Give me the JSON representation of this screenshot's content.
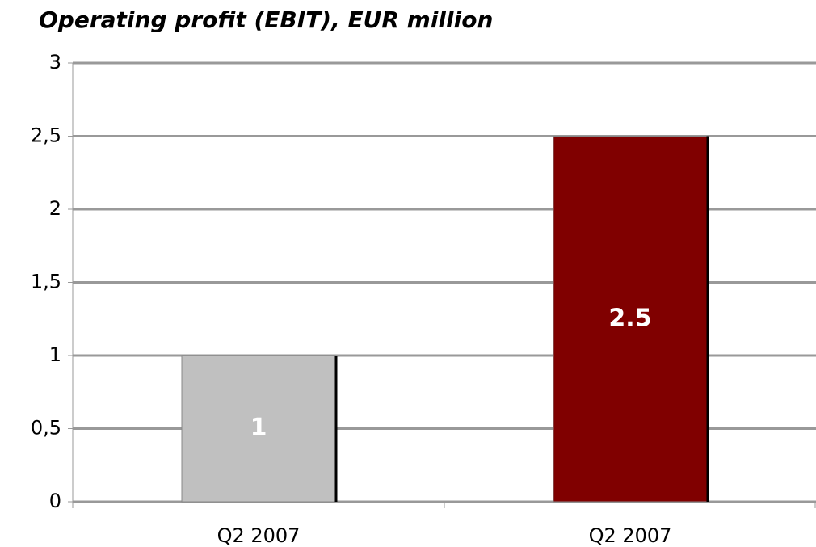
{
  "chart_data": {
    "type": "bar",
    "title": "Operating profit (EBIT), EUR million",
    "categories": [
      "Q2 2007",
      "Q2 2007"
    ],
    "values": [
      1,
      2.5
    ],
    "colors": [
      "#c0c0c0",
      "#800000"
    ],
    "ylim": [
      0,
      3
    ],
    "yticks": [
      0,
      {
        "value": 0.5,
        "label": "0,5"
      },
      1,
      {
        "value": 1.5,
        "label": "1,5"
      },
      2,
      {
        "value": 2.5,
        "label": "2,5"
      },
      3
    ],
    "grid": true
  }
}
